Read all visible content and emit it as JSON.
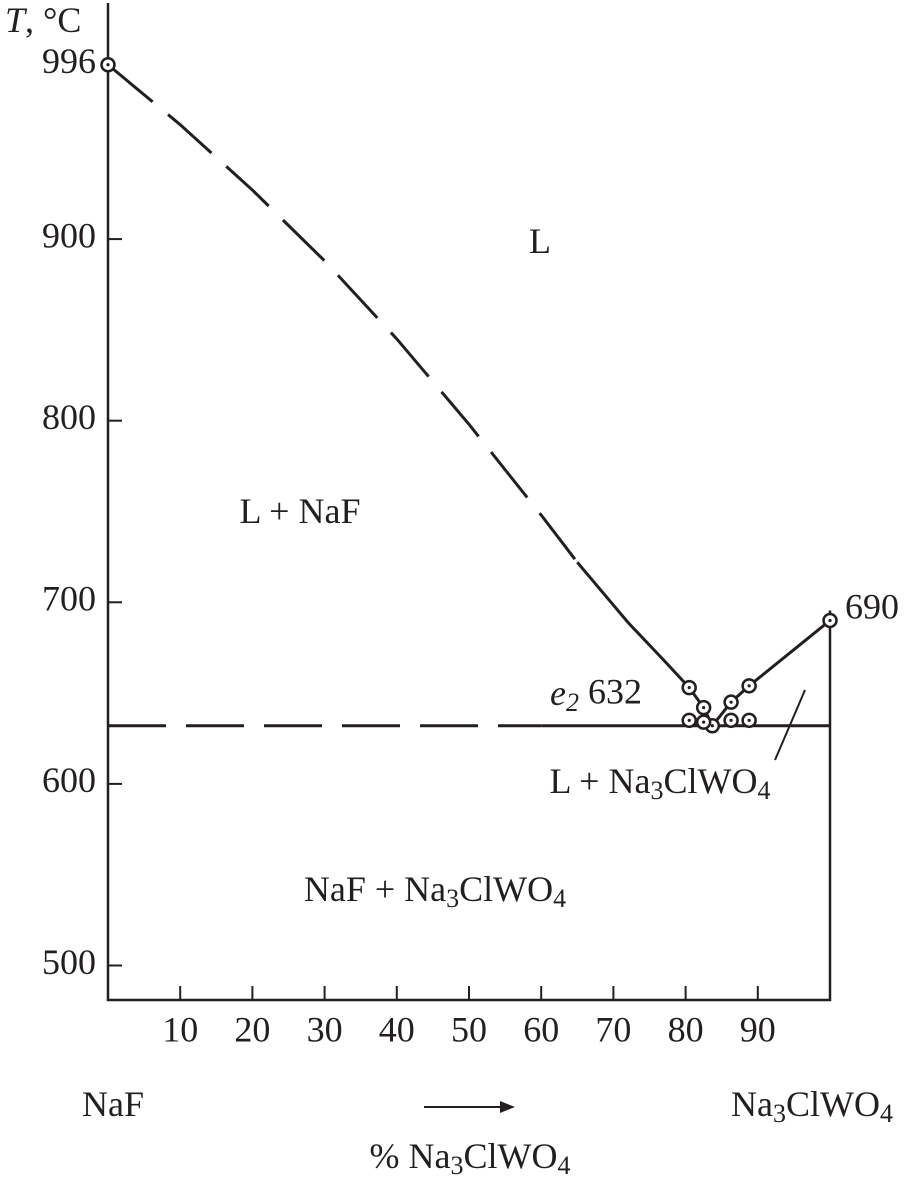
{
  "chart_data": {
    "type": "line",
    "y_label": "T, °C",
    "x_label": "% Na3ClWO4",
    "x_left_label": "NaF",
    "x_right_label": "Na3ClWO4",
    "annotations": [
      "L",
      "L + NaF",
      "NaF + Na3ClWO4",
      "L + Na3ClWO4"
    ],
    "eutectic_label": "e2",
    "xlim": [
      0,
      100
    ],
    "xticks": [
      10,
      20,
      30,
      40,
      50,
      60,
      70,
      80,
      90
    ],
    "ylim": [
      481,
      1030
    ],
    "yticks": [
      500,
      600,
      700,
      800,
      900,
      996
    ],
    "color": "#231f20",
    "series": [
      {
        "x": [
          0,
          10,
          20,
          30,
          40,
          50,
          60,
          65
        ],
        "values": [
          996,
          963,
          927,
          888,
          845,
          798,
          748,
          722
        ],
        "dashed": true
      },
      {
        "x": [
          65,
          72,
          77,
          80.5
        ],
        "values": [
          722,
          689,
          668,
          653
        ],
        "dashed": false
      },
      {
        "x": [
          80.5,
          82.5,
          83.7,
          86.3,
          88.8,
          100
        ],
        "values": [
          653,
          642,
          632,
          645,
          654,
          690
        ],
        "dashed": false
      },
      {
        "x": [
          0,
          60
        ],
        "values": [
          632,
          632
        ],
        "dashed": true
      },
      {
        "x": [
          60,
          100
        ],
        "values": [
          632,
          632
        ],
        "dashed": false
      }
    ],
    "points": {
      "x": [
        0,
        80.5,
        82.5,
        83.7,
        86.3,
        88.8,
        100,
        80.5,
        82.5,
        86.3,
        88.8
      ],
      "values": [
        996,
        653,
        642,
        632,
        645,
        654,
        690,
        635,
        634,
        635,
        635
      ]
    }
  }
}
